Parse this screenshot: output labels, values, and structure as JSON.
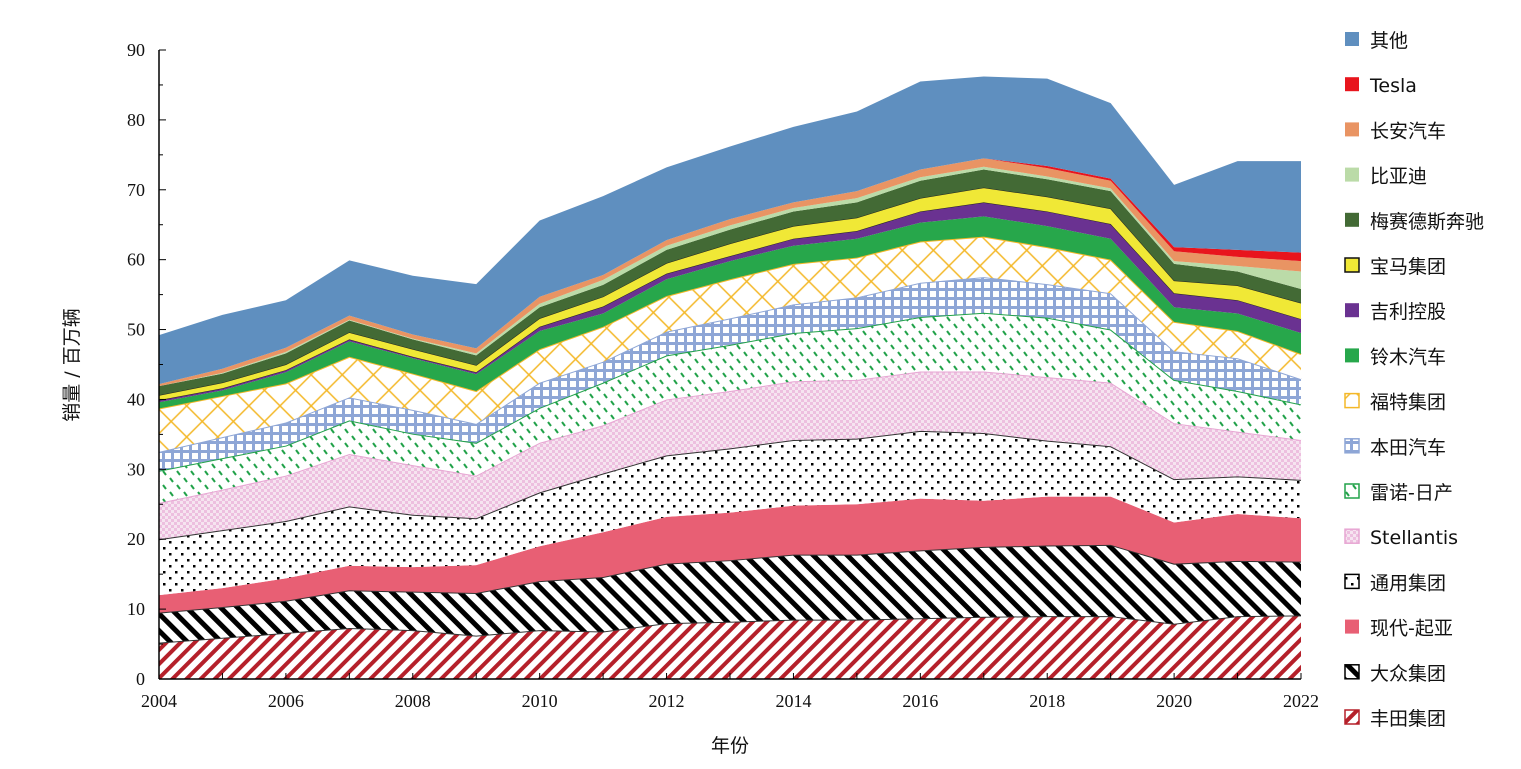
{
  "chart_data": {
    "type": "area",
    "stacked": true,
    "title": "",
    "xlabel": "年份",
    "ylabel": "销量 / 百万辆",
    "ylim": [
      0,
      90
    ],
    "yticks": [
      0,
      10,
      20,
      30,
      40,
      50,
      60,
      70,
      80,
      90
    ],
    "xlim": [
      2004,
      2022
    ],
    "xticks": [
      2004,
      2006,
      2008,
      2010,
      2012,
      2014,
      2016,
      2018,
      2020,
      2022
    ],
    "x": [
      2004,
      2005,
      2006,
      2007,
      2008,
      2009,
      2010,
      2011,
      2012,
      2013,
      2014,
      2015,
      2016,
      2017,
      2018,
      2019,
      2020,
      2021,
      2022
    ],
    "legend_position": "right",
    "series": [
      {
        "name": "丰田集团",
        "color": "#B5202A",
        "pattern": "stripe-up",
        "values": [
          5.2,
          5.9,
          6.6,
          7.3,
          7.0,
          6.2,
          7.0,
          6.8,
          8.0,
          8.2,
          8.5,
          8.5,
          8.7,
          8.9,
          9.0,
          9.0,
          7.9,
          9.0,
          9.1
        ]
      },
      {
        "name": "大众集团",
        "color": "#000000",
        "pattern": "stripe-down",
        "values": [
          4.3,
          4.4,
          4.6,
          5.4,
          5.5,
          6.1,
          7.0,
          7.8,
          8.5,
          8.8,
          9.3,
          9.3,
          9.7,
          10.0,
          10.1,
          10.2,
          8.6,
          7.9,
          7.7
        ]
      },
      {
        "name": "现代-起亚",
        "color": "#E85F74",
        "pattern": "solid",
        "values": [
          2.5,
          2.7,
          3.2,
          3.5,
          3.5,
          4.0,
          5.0,
          6.4,
          6.7,
          6.8,
          7.0,
          7.2,
          7.4,
          6.6,
          7.0,
          6.9,
          5.9,
          6.7,
          6.2
        ]
      },
      {
        "name": "通用集团",
        "color": "#000000",
        "pattern": "dots",
        "values": [
          8.0,
          8.3,
          8.2,
          8.5,
          7.5,
          6.7,
          7.7,
          8.4,
          8.8,
          9.2,
          9.4,
          9.4,
          9.7,
          9.7,
          8.0,
          7.2,
          6.2,
          5.4,
          5.5
        ]
      },
      {
        "name": "Stellantis",
        "color": "#E7A6D3",
        "pattern": "checker",
        "values": [
          5.2,
          5.8,
          6.5,
          7.5,
          7.1,
          6.1,
          7.1,
          6.9,
          8.0,
          8.2,
          8.4,
          8.4,
          8.5,
          8.8,
          9.1,
          9.1,
          8.0,
          6.4,
          5.7
        ]
      },
      {
        "name": "雷诺-日产",
        "color": "#22A24A",
        "pattern": "dash",
        "values": [
          4.6,
          4.5,
          4.3,
          4.8,
          4.5,
          4.7,
          5.0,
          6.1,
          6.3,
          6.6,
          6.9,
          7.4,
          7.8,
          8.4,
          8.5,
          7.6,
          6.2,
          5.8,
          5.1
        ]
      },
      {
        "name": "本田汽车",
        "color": "#8EA6D6",
        "pattern": "grid",
        "values": [
          2.7,
          3.0,
          3.3,
          3.3,
          3.4,
          2.7,
          3.6,
          3.0,
          3.4,
          3.8,
          4.1,
          4.4,
          4.9,
          5.1,
          4.8,
          5.2,
          4.1,
          4.7,
          3.6
        ]
      },
      {
        "name": "福特集团",
        "color": "#F4B828",
        "pattern": "lattice",
        "values": [
          6.2,
          5.9,
          5.6,
          5.8,
          5.2,
          4.7,
          4.8,
          5.0,
          5.1,
          5.6,
          5.8,
          5.7,
          5.9,
          5.8,
          5.3,
          4.8,
          4.2,
          3.9,
          3.6
        ]
      },
      {
        "name": "铃木汽车",
        "color": "#27A74B",
        "pattern": "solid",
        "values": [
          0.9,
          0.8,
          1.6,
          2.2,
          2.2,
          2.4,
          2.6,
          1.9,
          2.4,
          2.6,
          2.6,
          2.7,
          2.7,
          2.9,
          3.0,
          3.0,
          2.1,
          2.5,
          3.0
        ]
      },
      {
        "name": "吉利控股",
        "color": "#6A3291",
        "pattern": "solid",
        "values": [
          0.3,
          0.3,
          0.3,
          0.3,
          0.2,
          0.3,
          0.6,
          1.0,
          0.8,
          0.7,
          1.0,
          1.1,
          1.6,
          2.0,
          2.1,
          2.1,
          2.0,
          1.9,
          2.0
        ]
      },
      {
        "name": "宝马集团",
        "color": "#F0E836",
        "pattern": "solid",
        "values": [
          0.7,
          0.8,
          0.8,
          1.0,
          1.1,
          1.0,
          1.2,
          1.4,
          1.5,
          1.8,
          1.8,
          1.9,
          1.9,
          2.1,
          2.1,
          2.2,
          1.8,
          2.1,
          2.3
        ]
      },
      {
        "name": "梅赛德斯奔驰",
        "color": "#436A35",
        "pattern": "solid",
        "values": [
          1.3,
          1.3,
          1.6,
          1.7,
          1.4,
          1.4,
          1.6,
          1.7,
          1.9,
          2.0,
          2.1,
          2.2,
          2.5,
          2.6,
          2.5,
          2.5,
          2.4,
          2.0,
          2.0
        ]
      },
      {
        "name": "比亚迪",
        "color": "#BBDBA8",
        "pattern": "solid",
        "values": [
          0.0,
          0.1,
          0.2,
          0.1,
          0.1,
          0.3,
          0.5,
          0.7,
          0.6,
          0.6,
          0.5,
          0.6,
          0.5,
          0.4,
          0.4,
          0.4,
          0.4,
          0.8,
          2.5
        ]
      },
      {
        "name": "长安汽车",
        "color": "#E99463",
        "pattern": "solid",
        "values": [
          0.3,
          0.6,
          0.6,
          0.6,
          0.6,
          0.7,
          1.0,
          0.7,
          0.8,
          0.9,
          0.8,
          1.0,
          1.1,
          1.2,
          1.2,
          1.1,
          1.4,
          1.3,
          1.5
        ]
      },
      {
        "name": "Tesla",
        "color": "#E8151D",
        "pattern": "solid",
        "values": [
          0,
          0,
          0,
          0,
          0,
          0,
          0,
          0,
          0,
          0,
          0,
          0,
          0,
          0,
          0.3,
          0.3,
          0.6,
          1.0,
          1.2
        ]
      },
      {
        "name": "其他",
        "color": "#5F8FBF",
        "pattern": "solid",
        "values": [
          7.0,
          7.7,
          6.8,
          7.9,
          8.4,
          9.2,
          10.9,
          11.3,
          10.4,
          10.4,
          10.8,
          11.4,
          12.6,
          11.7,
          12.5,
          10.8,
          8.9,
          12.7,
          13.1
        ]
      }
    ]
  }
}
